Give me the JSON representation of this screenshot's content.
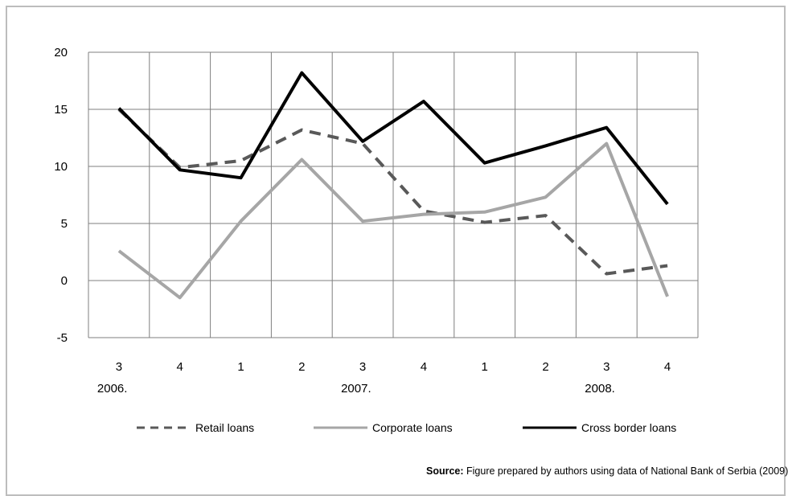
{
  "chart_data": {
    "type": "line",
    "categories": [
      "3",
      "4",
      "1",
      "2",
      "3",
      "4",
      "1",
      "2",
      "3",
      "4"
    ],
    "year_labels": [
      {
        "index": 0,
        "label": "2006."
      },
      {
        "index": 4,
        "label": "2007."
      },
      {
        "index": 8,
        "label": "2008."
      }
    ],
    "ylim": [
      -5,
      20
    ],
    "yticks": [
      20,
      15,
      10,
      5,
      0,
      -5
    ],
    "grid": true,
    "legend_position": "bottom",
    "series": [
      {
        "name": "Retail loans",
        "color": "#595959",
        "style": "dashed",
        "values": [
          15.0,
          9.9,
          10.5,
          13.2,
          12.0,
          6.1,
          5.1,
          5.7,
          0.6,
          1.3
        ]
      },
      {
        "name": "Corporate loans",
        "color": "#a6a6a6",
        "style": "solid",
        "values": [
          2.6,
          -1.5,
          5.2,
          10.6,
          5.2,
          5.8,
          6.0,
          7.3,
          12.0,
          -1.4
        ]
      },
      {
        "name": "Cross border loans",
        "color": "#000000",
        "style": "solid",
        "values": [
          15.1,
          9.7,
          9.0,
          18.2,
          12.2,
          15.7,
          10.3,
          11.8,
          13.4,
          6.7
        ]
      }
    ]
  },
  "source": {
    "label": "Source:",
    "text": " Figure prepared by authors using data of National Bank of Serbia (2009)"
  }
}
